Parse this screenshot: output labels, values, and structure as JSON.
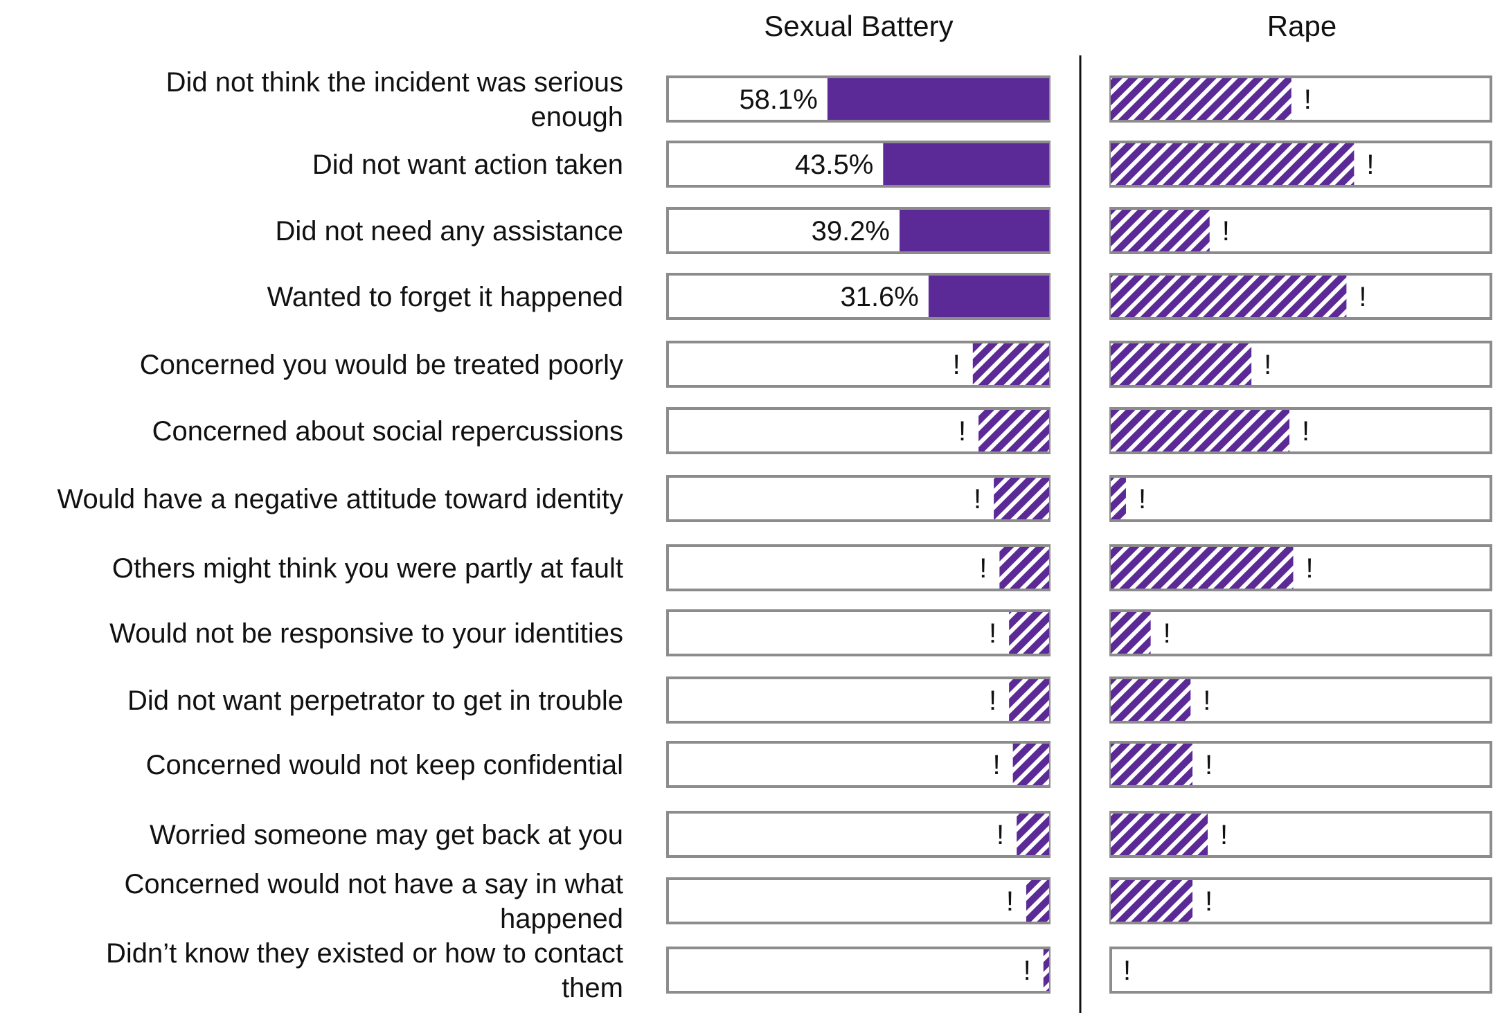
{
  "chart_data": {
    "type": "bar",
    "categories": [
      "Did not think the incident was serious enough",
      "Did not want action taken",
      "Did not need any assistance",
      "Wanted to forget it happened",
      "Concerned you would be treated poorly",
      "Concerned about social repercussions",
      "Would have a negative attitude toward identity",
      "Others might think you were partly at fault",
      "Would not be responsive to your identities",
      "Did not want perpetrator to get in trouble",
      "Concerned would not keep confidential",
      "Worried someone may get back at you",
      "Concerned would not have a say in what happened",
      "Didn’t know they existed or how to contact them"
    ],
    "category_lines": [
      [
        "Did not think the incident was serious",
        "enough"
      ],
      [
        "Did not want action taken"
      ],
      [
        "Did not need any assistance"
      ],
      [
        "Wanted to forget it happened"
      ],
      [
        "Concerned you would be treated poorly"
      ],
      [
        "Concerned about social repercussions"
      ],
      [
        "Would have a negative attitude toward identity"
      ],
      [
        "Others might think you were partly at fault"
      ],
      [
        "Would not be responsive to your identities"
      ],
      [
        "Did not want perpetrator to get in trouble"
      ],
      [
        "Concerned would not keep confidential"
      ],
      [
        "Worried someone may get back at you"
      ],
      [
        "Concerned would not have a say in what",
        "happened"
      ],
      [
        "Didn’t know they existed or how to contact",
        "them"
      ]
    ],
    "panels": [
      {
        "title": "Sexual Battery",
        "direction": "right-to-left",
        "values": [
          58.1,
          43.5,
          39.2,
          31.6,
          20.0,
          18.5,
          14.5,
          13.0,
          10.5,
          10.5,
          9.5,
          8.5,
          6.0,
          1.5
        ],
        "data_labels": [
          "58.1%",
          "43.5%",
          "39.2%",
          "31.6%",
          "!",
          "!",
          "!",
          "!",
          "!",
          "!",
          "!",
          "!",
          "!",
          "!"
        ],
        "hatched": [
          false,
          false,
          false,
          false,
          true,
          true,
          true,
          true,
          true,
          true,
          true,
          true,
          true,
          true
        ]
      },
      {
        "title": "Rape",
        "direction": "left-to-right",
        "values": [
          47.5,
          64.0,
          26.0,
          62.0,
          37.0,
          47.0,
          4.0,
          48.0,
          10.5,
          21.0,
          21.5,
          25.5,
          21.5,
          0.0
        ],
        "data_labels": [
          "!",
          "!",
          "!",
          "!",
          "!",
          "!",
          "!",
          "!",
          "!",
          "!",
          "!",
          "!",
          "!",
          "!"
        ],
        "hatched": [
          true,
          true,
          true,
          true,
          true,
          true,
          true,
          true,
          true,
          true,
          true,
          true,
          true,
          true
        ]
      }
    ],
    "xlim": [
      0,
      100
    ],
    "colors": {
      "bar": "#5b2a96",
      "frame": "#8c8c8c",
      "divider": "#111111",
      "text": "#111111"
    },
    "legend": "none",
    "grid": false
  }
}
